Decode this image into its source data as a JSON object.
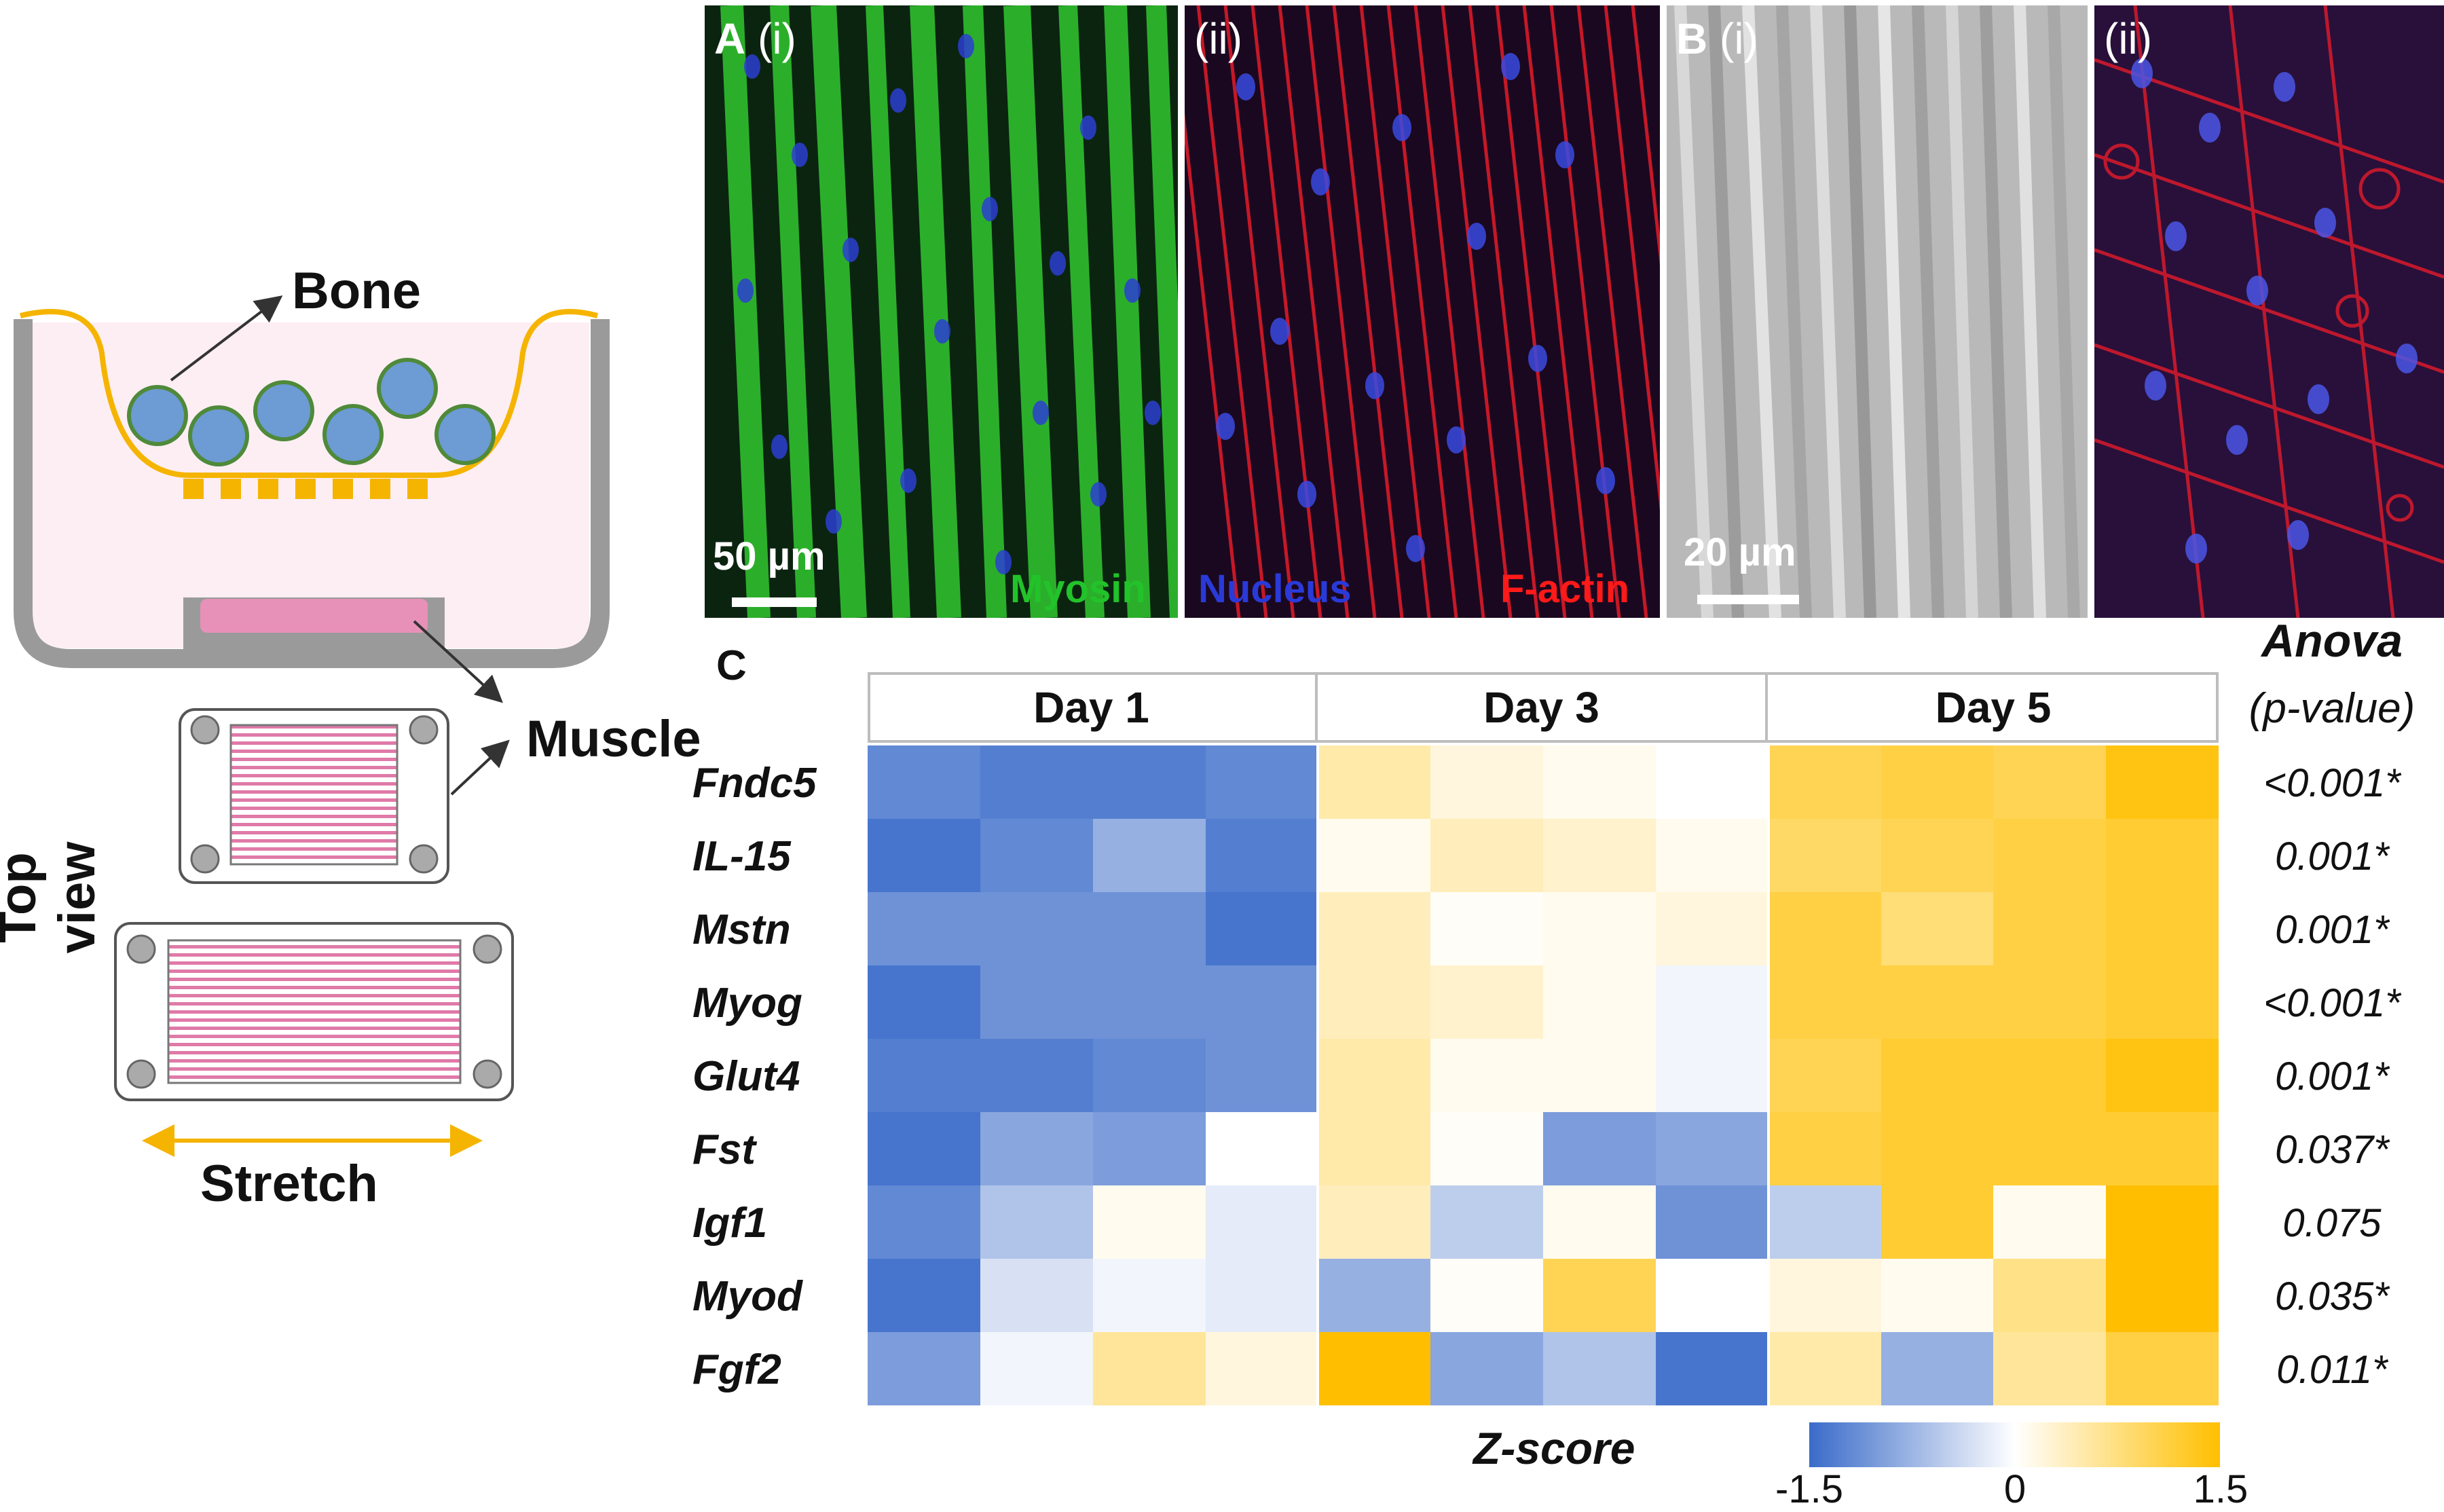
{
  "schematic": {
    "bone_label": "Bone",
    "muscle_label": "Muscle",
    "top_view_label": "Top view",
    "stretch_label": "Stretch"
  },
  "micrographs": {
    "A_i": {
      "letter": "A",
      "sub": "(i)",
      "scale": "50 µm",
      "stain_myosin": "Myosin",
      "stain_nucleus": "Nucleus",
      "stain_factin": "F-actin"
    },
    "A_ii": {
      "sub": "(ii)"
    },
    "B_i": {
      "letter": "B",
      "sub": "(i)",
      "scale": "20 µm"
    },
    "B_ii": {
      "sub": "(ii)"
    },
    "colors": {
      "myosin": "#22c32a",
      "nucleus": "#2a3ad8",
      "factin": "#ff1a1a"
    }
  },
  "heatmap": {
    "panel_label": "C",
    "anova_title": "Anova",
    "anova_sub": "(p-value)",
    "colorbar_title": "Z-score",
    "colorbar_ticks": [
      "-1.5",
      "0",
      "1.5"
    ],
    "color_low": "#3a6bc9",
    "color_mid": "#ffffff",
    "color_high": "#ffbf00"
  },
  "chart_data": {
    "type": "heatmap",
    "columns_groups": [
      "Day 1",
      "Day 3",
      "Day 5"
    ],
    "replicates_per_group": 4,
    "rows": [
      "Fndc5",
      "IL-15",
      "Mstn",
      "Myog",
      "Glut4",
      "Fst",
      "Igf1",
      "Myod",
      "Fgf2"
    ],
    "anova_p": [
      "<0.001*",
      "0.001*",
      "0.001*",
      "<0.001*",
      "0.001*",
      "0.037*",
      "0.075",
      "0.035*",
      "0.011*"
    ],
    "z_range": [
      -1.5,
      1.5
    ],
    "z": [
      [
        -1.2,
        -1.3,
        -1.3,
        -1.2,
        0.5,
        0.2,
        0.1,
        0.0,
        1.0,
        1.1,
        1.0,
        1.4
      ],
      [
        -1.4,
        -1.2,
        -0.8,
        -1.3,
        0.1,
        0.4,
        0.3,
        0.1,
        0.9,
        1.0,
        1.1,
        1.2
      ],
      [
        -1.1,
        -1.1,
        -1.1,
        -1.4,
        0.4,
        0.05,
        0.1,
        0.2,
        1.1,
        0.8,
        1.1,
        1.2
      ],
      [
        -1.4,
        -1.1,
        -1.1,
        -1.1,
        0.4,
        0.3,
        0.1,
        -0.1,
        1.1,
        1.1,
        1.1,
        1.2
      ],
      [
        -1.3,
        -1.3,
        -1.2,
        -1.1,
        0.5,
        0.1,
        0.1,
        -0.1,
        1.0,
        1.2,
        1.2,
        1.4
      ],
      [
        -1.4,
        -0.9,
        -1.0,
        0.0,
        0.5,
        0.05,
        -1.0,
        -0.9,
        1.1,
        1.2,
        1.2,
        1.2
      ],
      [
        -1.2,
        -0.6,
        0.1,
        -0.2,
        0.4,
        -0.5,
        0.1,
        -1.1,
        -0.5,
        1.2,
        0.1,
        1.5
      ],
      [
        -1.4,
        -0.3,
        -0.1,
        -0.2,
        -0.8,
        0.05,
        1.0,
        0.0,
        0.2,
        0.1,
        0.7,
        1.5
      ],
      [
        -1.0,
        -0.1,
        0.6,
        0.2,
        1.5,
        -0.9,
        -0.6,
        -1.4,
        0.5,
        -0.8,
        0.6,
        1.1
      ]
    ]
  }
}
